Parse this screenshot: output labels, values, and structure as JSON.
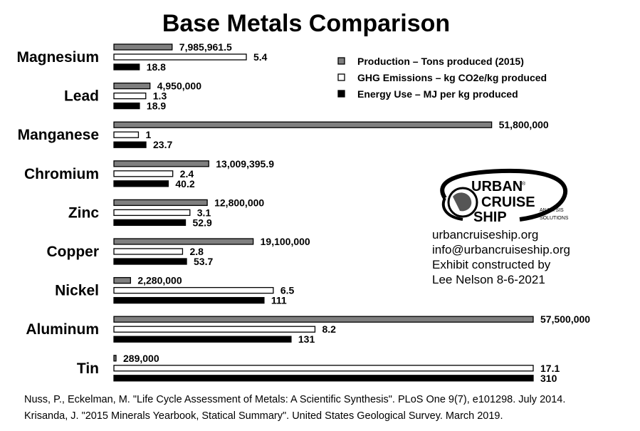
{
  "chart_data": {
    "type": "bar",
    "orientation": "horizontal",
    "title": "Base Metals Comparison",
    "categories": [
      "Magnesium",
      "Lead",
      "Manganese",
      "Chromium",
      "Zinc",
      "Copper",
      "Nickel",
      "Aluminum",
      "Tin"
    ],
    "series": [
      {
        "name": "Production – Tons produced (2015)",
        "color": "#7f7f7f",
        "values": [
          7985961.5,
          4950000,
          51800000,
          13009395.9,
          12800000,
          19100000,
          2280000,
          57500000,
          289000
        ],
        "labels": [
          "7,985,961.5",
          "4,950,000",
          "51,800,000",
          "13,009,395.9",
          "12,800,000",
          "19,100,000",
          "2,280,000",
          "57,500,000",
          "289,000"
        ]
      },
      {
        "name": "GHG Emissions – kg CO2e/kg produced",
        "color": "#ffffff",
        "values": [
          5.4,
          1.3,
          1,
          2.4,
          3.1,
          2.8,
          6.5,
          8.2,
          17.1
        ],
        "labels": [
          "5.4",
          "1.3",
          "1",
          "2.4",
          "3.1",
          "2.8",
          "6.5",
          "8.2",
          "17.1"
        ]
      },
      {
        "name": "Energy Use – MJ per kg produced",
        "color": "#000000",
        "values": [
          18.8,
          18.9,
          23.7,
          40.2,
          52.9,
          53.7,
          111,
          131,
          310
        ],
        "labels": [
          "18.8",
          "18.9",
          "23.7",
          "40.2",
          "52.9",
          "53.7",
          "111",
          "131",
          "310"
        ]
      }
    ],
    "legend": "top-right",
    "grid": false,
    "xlabel": "",
    "ylabel": ""
  },
  "logo": {
    "line1": "URBAN",
    "line2": "CRUISE",
    "line3": "SHIP",
    "tag1": "ANALYSIS",
    "tag2": "SOLUTIONS",
    "mark": "®"
  },
  "info": [
    "urbancruiseship.org",
    "info@urbancruiseship.org",
    "Exhibit constructed by",
    "Lee Nelson 8-6-2021"
  ],
  "sources": [
    "Nuss, P., Eckelman, M. \"Life Cycle Assessment of Metals: A Scientific Synthesis\". PLoS One 9(7), e101298. July 2014.",
    "Krisanda, J. \"2015 Minerals Yearbook, Statical Summary\". United States Geological Survey. March 2019."
  ]
}
